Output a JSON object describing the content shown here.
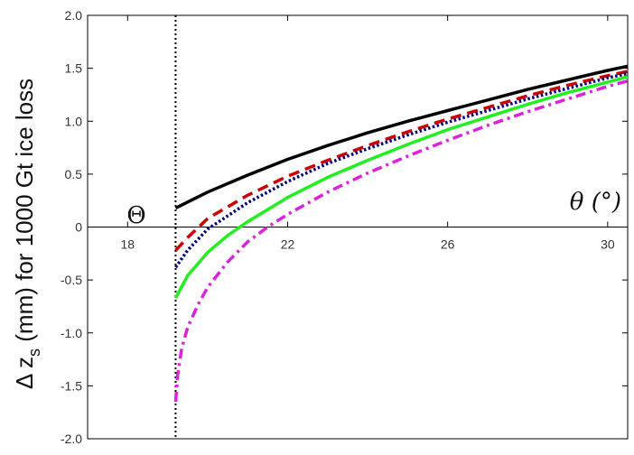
{
  "chart_data": {
    "type": "line",
    "title": "",
    "ylabel": {
      "main": "Δ z",
      "sub": "s",
      "rest": " (mm) for 1000 Gt ice loss"
    },
    "xlabel": "θ (°)",
    "vline_label": "Θ",
    "xlim": [
      17.0,
      30.5
    ],
    "ylim": [
      -2.0,
      2.0
    ],
    "xticks": [
      "18",
      "22",
      "26",
      "30"
    ],
    "xtick_values": [
      18,
      22,
      26,
      30
    ],
    "yticks": [
      "2.0",
      "1.5",
      "1.0",
      "0.5",
      "0",
      "-0.5",
      "-1.0",
      "-1.5",
      "-2.0"
    ],
    "ytick_values": [
      2.0,
      1.5,
      1.0,
      0.5,
      0,
      -0.5,
      -1.0,
      -1.5,
      -2.0
    ],
    "vline_x": 19.2,
    "x_axis_at_y": 0,
    "grid": false,
    "series": [
      {
        "color": "#000000",
        "style": "solid",
        "x": [
          19.2,
          20,
          21,
          22,
          23,
          24,
          25,
          26,
          27,
          28,
          29,
          30,
          30.5
        ],
        "y": [
          0.18,
          0.33,
          0.49,
          0.64,
          0.77,
          0.89,
          1.0,
          1.1,
          1.2,
          1.3,
          1.39,
          1.48,
          1.52
        ]
      },
      {
        "color": "#cc0000",
        "style": "dashed",
        "x": [
          19.2,
          19.5,
          20,
          21,
          22,
          23,
          24,
          25,
          26,
          27,
          28,
          29,
          30,
          30.5
        ],
        "y": [
          -0.22,
          -0.1,
          0.08,
          0.3,
          0.48,
          0.63,
          0.77,
          0.9,
          1.02,
          1.13,
          1.24,
          1.34,
          1.43,
          1.47
        ]
      },
      {
        "color": "#000080",
        "style": "dotted",
        "x": [
          19.2,
          19.5,
          20,
          21,
          22,
          23,
          24,
          25,
          26,
          27,
          28,
          29,
          30,
          30.5
        ],
        "y": [
          -0.38,
          -0.22,
          -0.02,
          0.23,
          0.43,
          0.6,
          0.74,
          0.87,
          0.99,
          1.1,
          1.21,
          1.31,
          1.41,
          1.45
        ]
      },
      {
        "color": "#22ee22",
        "style": "solid",
        "x": [
          19.2,
          19.5,
          20,
          20.5,
          21,
          22,
          23,
          24,
          25,
          26,
          27,
          28,
          29,
          30,
          30.5
        ],
        "y": [
          -0.67,
          -0.46,
          -0.24,
          -0.08,
          0.05,
          0.28,
          0.47,
          0.63,
          0.78,
          0.92,
          1.04,
          1.16,
          1.27,
          1.37,
          1.42
        ]
      },
      {
        "color": "#dd22dd",
        "style": "dashdot",
        "x": [
          19.2,
          19.25,
          19.35,
          19.5,
          19.75,
          20,
          20.5,
          21,
          21.5,
          22,
          23,
          24,
          25,
          26,
          27,
          28,
          29,
          30,
          30.5
        ],
        "y": [
          -1.65,
          -1.4,
          -1.15,
          -0.95,
          -0.74,
          -0.57,
          -0.33,
          -0.14,
          0.0,
          0.12,
          0.33,
          0.51,
          0.67,
          0.82,
          0.96,
          1.09,
          1.21,
          1.33,
          1.38
        ]
      }
    ]
  }
}
